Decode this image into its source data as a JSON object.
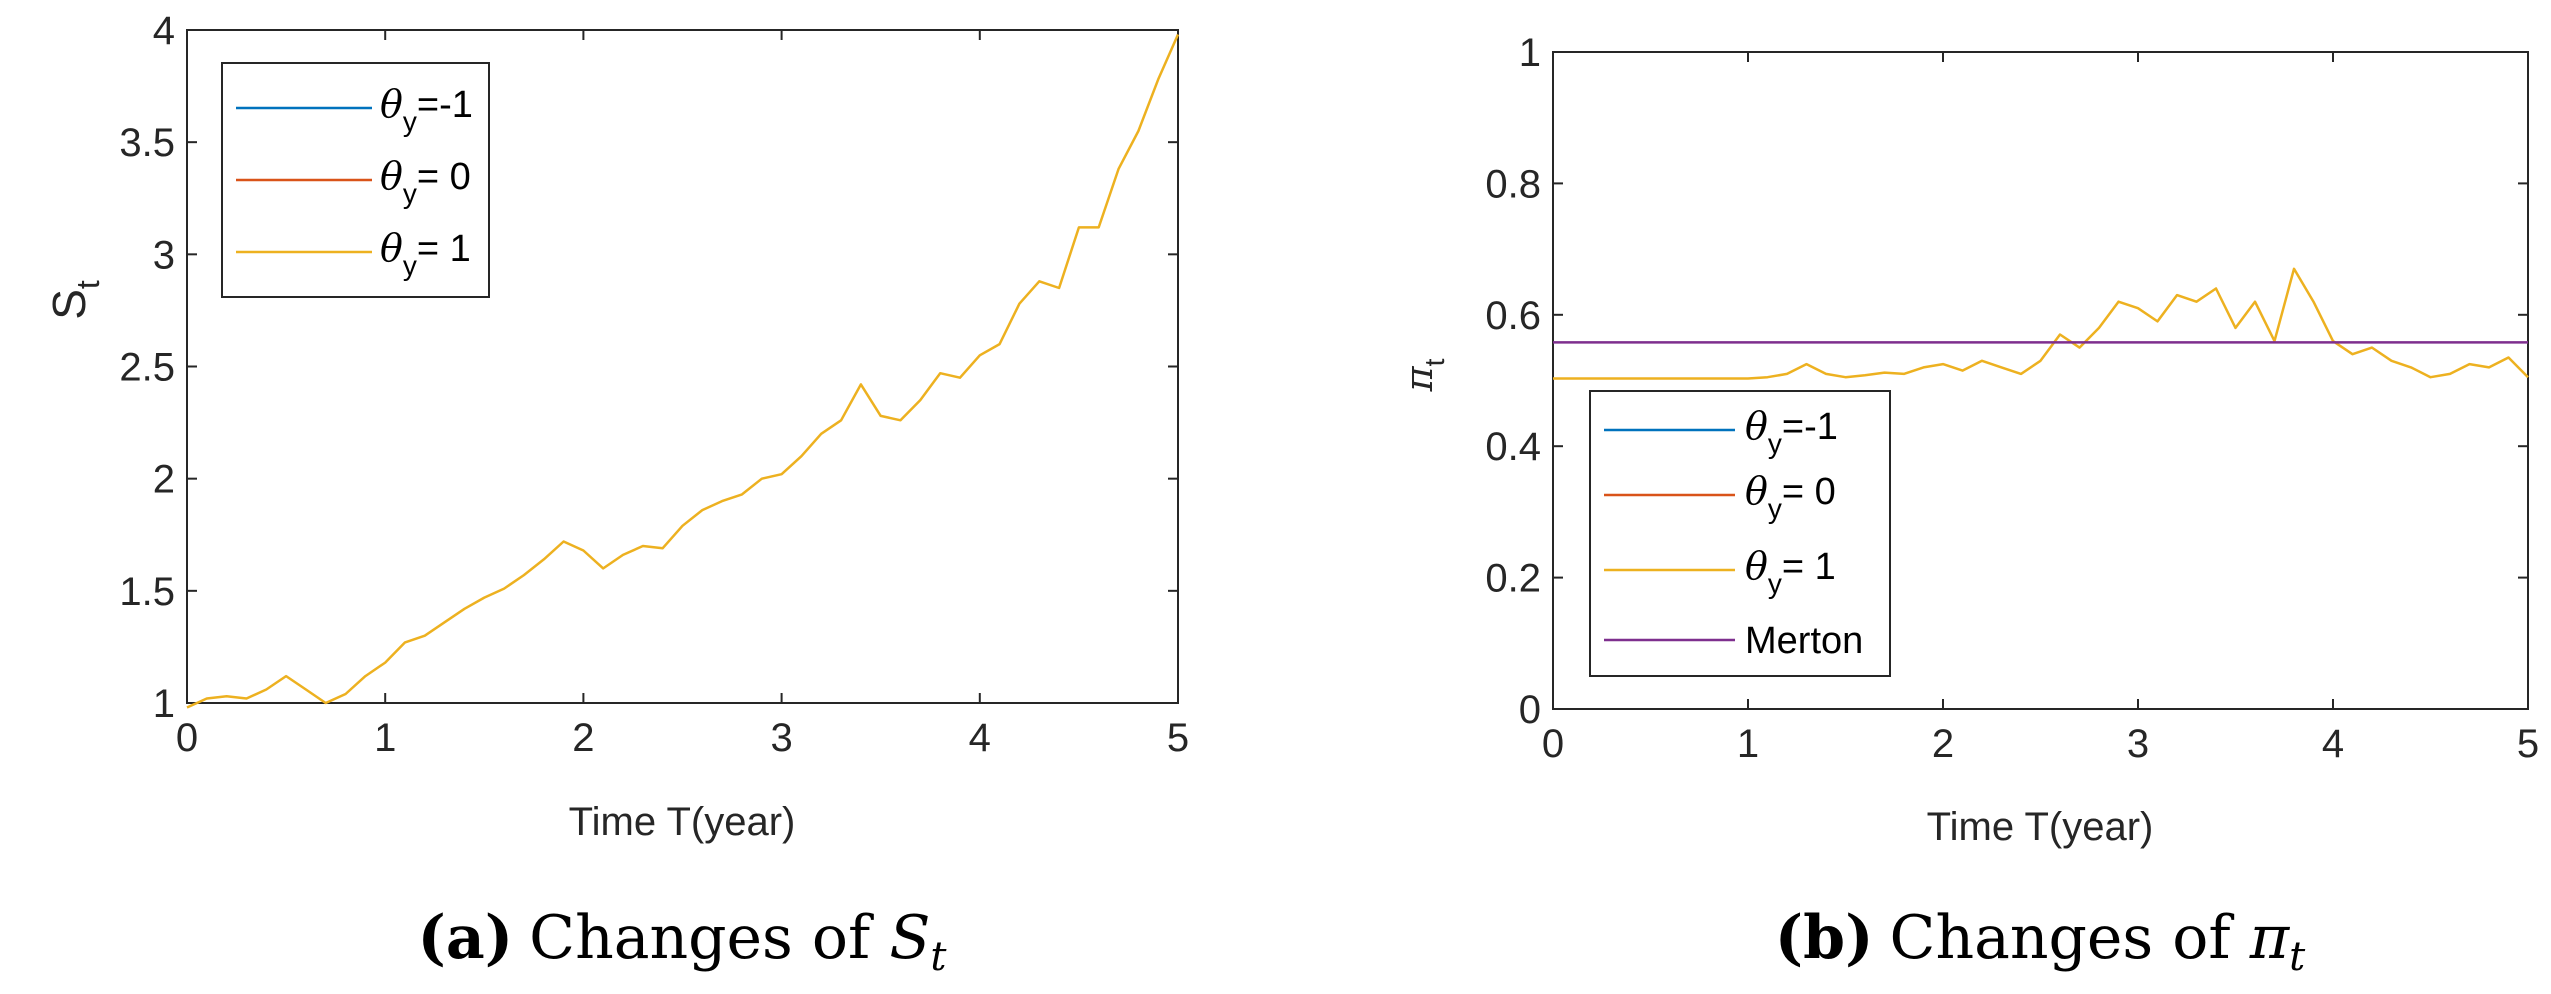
{
  "colors": {
    "series1": "#0072BD",
    "series2": "#D95319",
    "series3": "#EDB120",
    "merton": "#7E2F8E",
    "axis": "#262626"
  },
  "chart_data": [
    {
      "id": "a",
      "type": "line",
      "title": "",
      "xlabel": "Time T(year)",
      "ylabel_main": "S",
      "ylabel_sub": "t",
      "xlim": [
        0,
        5
      ],
      "ylim": [
        1,
        4
      ],
      "xticks": [
        0,
        1,
        2,
        3,
        4,
        5
      ],
      "xtick_labels": [
        "0",
        "1",
        "2",
        "3",
        "4",
        "5"
      ],
      "yticks": [
        1,
        1.5,
        2,
        2.5,
        3,
        3.5,
        4
      ],
      "ytick_labels": [
        "1",
        "1.5",
        "2",
        "2.5",
        "3",
        "3.5",
        "4"
      ],
      "legend_position": "top-left",
      "caption_letter": "(a)",
      "caption_prefix": "Changes of ",
      "caption_sym": "S",
      "caption_sub": "t",
      "series": [
        {
          "name": "θ y =-1",
          "legend_sym": "θ",
          "legend_sub": "y",
          "legend_rest": "=-1",
          "color": "#0072BD"
        },
        {
          "name": "θ y = 0",
          "legend_sym": "θ",
          "legend_sub": "y",
          "legend_rest": "= 0",
          "color": "#D95319"
        },
        {
          "name": "θ y = 1",
          "legend_sym": "θ",
          "legend_sub": "y",
          "legend_rest": "= 1",
          "color": "#EDB120",
          "x": [
            0,
            0.1,
            0.2,
            0.3,
            0.4,
            0.5,
            0.6,
            0.7,
            0.8,
            0.9,
            1.0,
            1.1,
            1.2,
            1.3,
            1.4,
            1.5,
            1.6,
            1.7,
            1.8,
            1.9,
            2.0,
            2.1,
            2.2,
            2.3,
            2.4,
            2.5,
            2.6,
            2.7,
            2.8,
            2.9,
            3.0,
            3.1,
            3.2,
            3.3,
            3.4,
            3.5,
            3.6,
            3.7,
            3.8,
            3.9,
            4.0,
            4.1,
            4.2,
            4.3,
            4.4,
            4.5,
            4.6,
            4.7,
            4.8,
            4.9,
            5.0
          ],
          "y": [
            0.98,
            1.02,
            1.03,
            1.02,
            1.06,
            1.12,
            1.06,
            1.0,
            1.04,
            1.12,
            1.18,
            1.27,
            1.3,
            1.36,
            1.42,
            1.47,
            1.51,
            1.57,
            1.64,
            1.72,
            1.68,
            1.6,
            1.66,
            1.7,
            1.69,
            1.79,
            1.86,
            1.9,
            1.93,
            2.0,
            2.02,
            2.1,
            2.2,
            2.26,
            2.42,
            2.28,
            2.26,
            2.35,
            2.47,
            2.45,
            2.55,
            2.6,
            2.78,
            2.88,
            2.85,
            3.12,
            3.12,
            3.38,
            3.55,
            3.78,
            3.98
          ]
        }
      ]
    },
    {
      "id": "b",
      "type": "line",
      "title": "",
      "xlabel": "Time T(year)",
      "ylabel_main": "π",
      "ylabel_sub": "t",
      "xlim": [
        0,
        5
      ],
      "ylim": [
        0,
        1
      ],
      "xticks": [
        0,
        1,
        2,
        3,
        4,
        5
      ],
      "xtick_labels": [
        "0",
        "1",
        "2",
        "3",
        "4",
        "5"
      ],
      "yticks": [
        0,
        0.2,
        0.4,
        0.6,
        0.8,
        1
      ],
      "ytick_labels": [
        "0",
        "0.2",
        "0.4",
        "0.6",
        "0.8",
        "1"
      ],
      "legend_position": "bottom-left",
      "caption_letter": "(b)",
      "caption_prefix": "Changes of ",
      "caption_sym": "π",
      "caption_sub": "t",
      "series": [
        {
          "name": "θ y =-1",
          "legend_sym": "θ",
          "legend_sub": "y",
          "legend_rest": "=-1",
          "color": "#0072BD"
        },
        {
          "name": "θ y = 0",
          "legend_sym": "θ",
          "legend_sub": "y",
          "legend_rest": "= 0",
          "color": "#D95319"
        },
        {
          "name": "θ y = 1",
          "legend_sym": "θ",
          "legend_sub": "y",
          "legend_rest": "= 1",
          "color": "#EDB120",
          "x": [
            0,
            0.2,
            0.4,
            0.6,
            0.8,
            1.0,
            1.1,
            1.2,
            1.3,
            1.4,
            1.5,
            1.6,
            1.7,
            1.8,
            1.9,
            2.0,
            2.1,
            2.2,
            2.3,
            2.4,
            2.5,
            2.6,
            2.7,
            2.8,
            2.9,
            3.0,
            3.1,
            3.2,
            3.3,
            3.4,
            3.5,
            3.6,
            3.7,
            3.8,
            3.9,
            4.0,
            4.1,
            4.2,
            4.3,
            4.4,
            4.5,
            4.6,
            4.7,
            4.8,
            4.9,
            5.0
          ],
          "y": [
            0.503,
            0.503,
            0.503,
            0.503,
            0.503,
            0.503,
            0.505,
            0.51,
            0.525,
            0.51,
            0.505,
            0.508,
            0.512,
            0.51,
            0.52,
            0.525,
            0.515,
            0.53,
            0.52,
            0.51,
            0.53,
            0.57,
            0.55,
            0.58,
            0.62,
            0.61,
            0.59,
            0.63,
            0.62,
            0.64,
            0.58,
            0.62,
            0.56,
            0.67,
            0.62,
            0.56,
            0.54,
            0.55,
            0.53,
            0.52,
            0.505,
            0.51,
            0.525,
            0.52,
            0.535,
            0.505
          ]
        },
        {
          "name": "Merton",
          "legend_text": "Merton",
          "color": "#7E2F8E",
          "x": [
            0,
            5
          ],
          "y": [
            0.558,
            0.558
          ]
        }
      ]
    }
  ]
}
